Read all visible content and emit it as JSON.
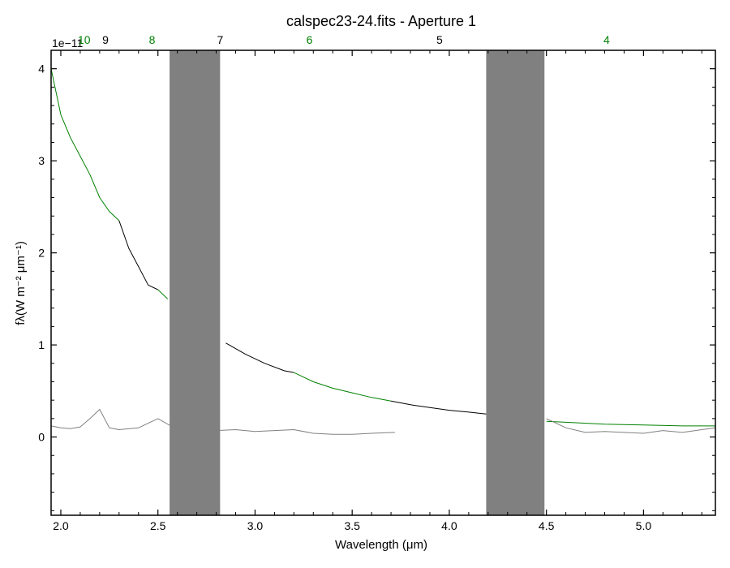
{
  "chart_data": {
    "type": "line",
    "title": "calspec23-24.fits - Aperture 1",
    "xlabel": "Wavelength (μm)",
    "ylabel": "fλ(W m⁻² μm⁻¹)",
    "offset_label": "1e−11",
    "xlim": [
      1.95,
      5.37
    ],
    "ylim": [
      -0.85,
      4.2
    ],
    "y_scale_factor": 1e-11,
    "x_ticks": [
      2.0,
      2.5,
      3.0,
      3.5,
      4.0,
      4.5,
      5.0
    ],
    "x_tick_labels": [
      "2.0",
      "2.5",
      "3.0",
      "3.5",
      "4.0",
      "4.5",
      "5.0"
    ],
    "y_ticks": [
      0,
      1,
      2,
      3,
      4
    ],
    "y_tick_labels": [
      "0",
      "1",
      "2",
      "3",
      "4"
    ],
    "grid": false,
    "order_labels": [
      {
        "text": "10",
        "x": 2.12,
        "color": "#008000"
      },
      {
        "text": "9",
        "x": 2.23,
        "color": "#000000"
      },
      {
        "text": "8",
        "x": 2.47,
        "color": "#008000"
      },
      {
        "text": "7",
        "x": 2.82,
        "color": "#000000"
      },
      {
        "text": "6",
        "x": 3.28,
        "color": "#008000"
      },
      {
        "text": "5",
        "x": 3.95,
        "color": "#000000"
      },
      {
        "text": "4",
        "x": 4.81,
        "color": "#008000"
      }
    ],
    "series": [
      {
        "color": "#008000",
        "x": [
          1.95,
          2.0,
          2.05,
          2.1,
          2.15,
          2.2,
          2.25,
          2.3
        ],
        "y": [
          4.0,
          3.5,
          3.25,
          3.05,
          2.85,
          2.6,
          2.45,
          2.35
        ]
      },
      {
        "color": "#000000",
        "x": [
          2.3,
          2.35,
          2.4,
          2.45,
          2.5
        ],
        "y": [
          2.35,
          2.05,
          1.85,
          1.65,
          1.6
        ]
      },
      {
        "color": "#008000",
        "x": [
          2.5,
          2.55
        ],
        "y": [
          1.6,
          1.5
        ]
      },
      {
        "color": "#000000",
        "x": [
          2.85,
          2.95,
          3.05,
          3.15,
          3.2
        ],
        "y": [
          1.02,
          0.9,
          0.8,
          0.72,
          0.7
        ]
      },
      {
        "color": "#008000",
        "x": [
          3.2,
          3.3,
          3.4,
          3.5,
          3.6,
          3.7
        ],
        "y": [
          0.7,
          0.6,
          0.53,
          0.48,
          0.43,
          0.39
        ]
      },
      {
        "color": "#000000",
        "x": [
          3.7,
          3.8,
          3.9,
          4.0,
          4.1,
          4.19
        ],
        "y": [
          0.39,
          0.35,
          0.32,
          0.29,
          0.27,
          0.25
        ]
      },
      {
        "color": "#008000",
        "x": [
          4.5,
          4.6,
          4.8,
          5.0,
          5.2,
          5.37
        ],
        "y": [
          0.17,
          0.16,
          0.14,
          0.13,
          0.12,
          0.12
        ]
      },
      {
        "color": "#808080",
        "x": [
          1.95,
          2.0,
          2.05,
          2.1,
          2.15,
          2.2,
          2.25,
          2.3,
          2.4,
          2.5,
          2.6,
          2.7,
          2.8,
          2.9,
          3.0,
          3.1,
          3.2,
          3.3,
          3.4,
          3.5,
          3.6,
          3.72
        ],
        "y": [
          0.12,
          0.1,
          0.09,
          0.11,
          0.2,
          0.3,
          0.1,
          0.08,
          0.1,
          0.2,
          0.08,
          0.06,
          0.07,
          0.08,
          0.06,
          0.07,
          0.08,
          0.04,
          0.03,
          0.03,
          0.04,
          0.05
        ]
      },
      {
        "color": "#808080",
        "x": [
          4.5,
          4.6,
          4.7,
          4.8,
          4.9,
          5.0,
          5.1,
          5.2,
          5.3,
          5.37
        ],
        "y": [
          0.2,
          0.1,
          0.05,
          0.06,
          0.05,
          0.04,
          0.07,
          0.05,
          0.08,
          0.1
        ]
      }
    ],
    "shaded_bands": [
      {
        "x": [
          2.56,
          2.82
        ],
        "y": [
          -0.85,
          4.2
        ],
        "color": "#808080"
      },
      {
        "x": [
          4.19,
          4.49
        ],
        "y": [
          -0.85,
          4.2
        ],
        "color": "#808080"
      }
    ]
  }
}
